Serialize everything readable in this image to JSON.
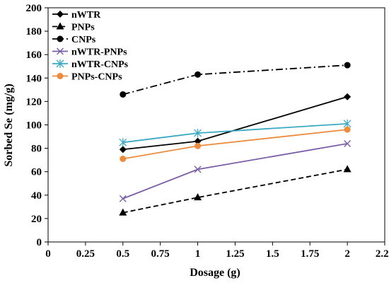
{
  "chart_data": {
    "type": "line",
    "title": "",
    "xlabel": "Dosage (g)",
    "ylabel": "Sorbed Se (mg/g)",
    "xlim": [
      0,
      2.25
    ],
    "ylim": [
      0,
      200
    ],
    "x_ticks": [
      "0",
      "0.25",
      "0.5",
      "0.75",
      "1",
      "1.25",
      "1.5",
      "1.75",
      "2",
      "2.25"
    ],
    "y_ticks": [
      "0",
      "20",
      "40",
      "60",
      "80",
      "100",
      "120",
      "140",
      "160",
      "180",
      "200"
    ],
    "grid": false,
    "legend_position": "top-left",
    "series": [
      {
        "name": "nWTR",
        "x": [
          0.5,
          1,
          2
        ],
        "y": [
          79,
          86,
          124
        ],
        "color": "#000000",
        "line": "solid",
        "marker": "diamond"
      },
      {
        "name": "PNPs",
        "x": [
          0.5,
          1,
          2
        ],
        "y": [
          25,
          38,
          62
        ],
        "color": "#000000",
        "line": "dashed",
        "marker": "triangle"
      },
      {
        "name": "CNPs",
        "x": [
          0.5,
          1,
          2
        ],
        "y": [
          126,
          143,
          151
        ],
        "color": "#000000",
        "line": "dashdot",
        "marker": "circle"
      },
      {
        "name": "nWTR-PNPs",
        "x": [
          0.5,
          1,
          2
        ],
        "y": [
          37,
          62,
          84
        ],
        "color": "#7b5ea7",
        "line": "solid",
        "marker": "x"
      },
      {
        "name": "nWTR-CNPs",
        "x": [
          0.5,
          1,
          2
        ],
        "y": [
          85,
          93,
          101
        ],
        "color": "#3aa9c4",
        "line": "solid",
        "marker": "asterisk"
      },
      {
        "name": "PNPs-CNPs",
        "x": [
          0.5,
          1,
          2
        ],
        "y": [
          71,
          82,
          96
        ],
        "color": "#ed8b3d",
        "line": "solid",
        "marker": "circle"
      }
    ]
  }
}
